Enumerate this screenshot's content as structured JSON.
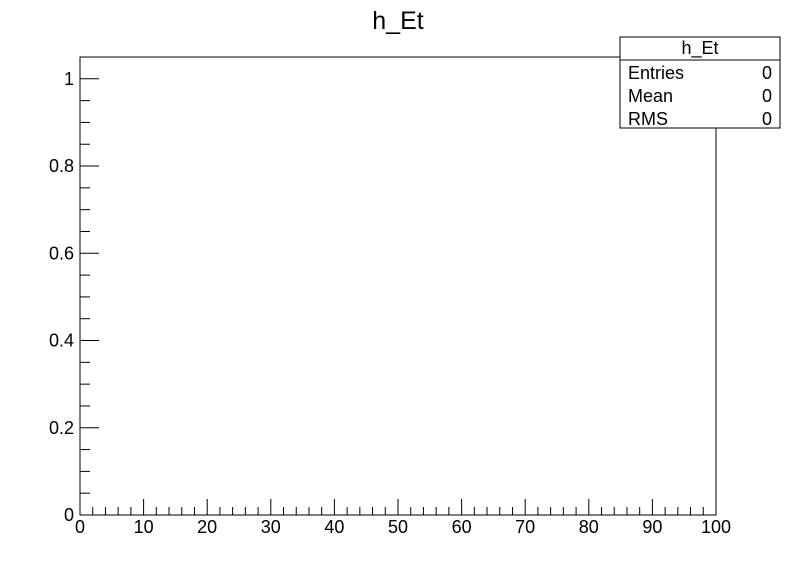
{
  "chart_data": {
    "type": "bar",
    "title": "h_Et",
    "xlabel": "",
    "ylabel": "",
    "xlim": [
      0,
      100
    ],
    "ylim": [
      0,
      1.05
    ],
    "x_ticks": [
      0,
      10,
      20,
      30,
      40,
      50,
      60,
      70,
      80,
      90,
      100
    ],
    "x_tick_labels": [
      "0",
      "10",
      "20",
      "30",
      "40",
      "50",
      "60",
      "70",
      "80",
      "90",
      "100"
    ],
    "y_ticks": [
      0,
      0.2,
      0.4,
      0.6,
      0.8,
      1
    ],
    "y_tick_labels": [
      "0",
      "0.2",
      "0.4",
      "0.6",
      "0.8",
      "1"
    ],
    "x_minor_step": 2,
    "y_minor_step": 0.05,
    "grid": false,
    "legend": "none",
    "series": [],
    "stats_box": {
      "title": "h_Et",
      "placement": "top-right",
      "rows": [
        {
          "label": "Entries",
          "value": "0"
        },
        {
          "label": "Mean",
          "value": "0"
        },
        {
          "label": "RMS",
          "value": "0"
        }
      ]
    }
  }
}
